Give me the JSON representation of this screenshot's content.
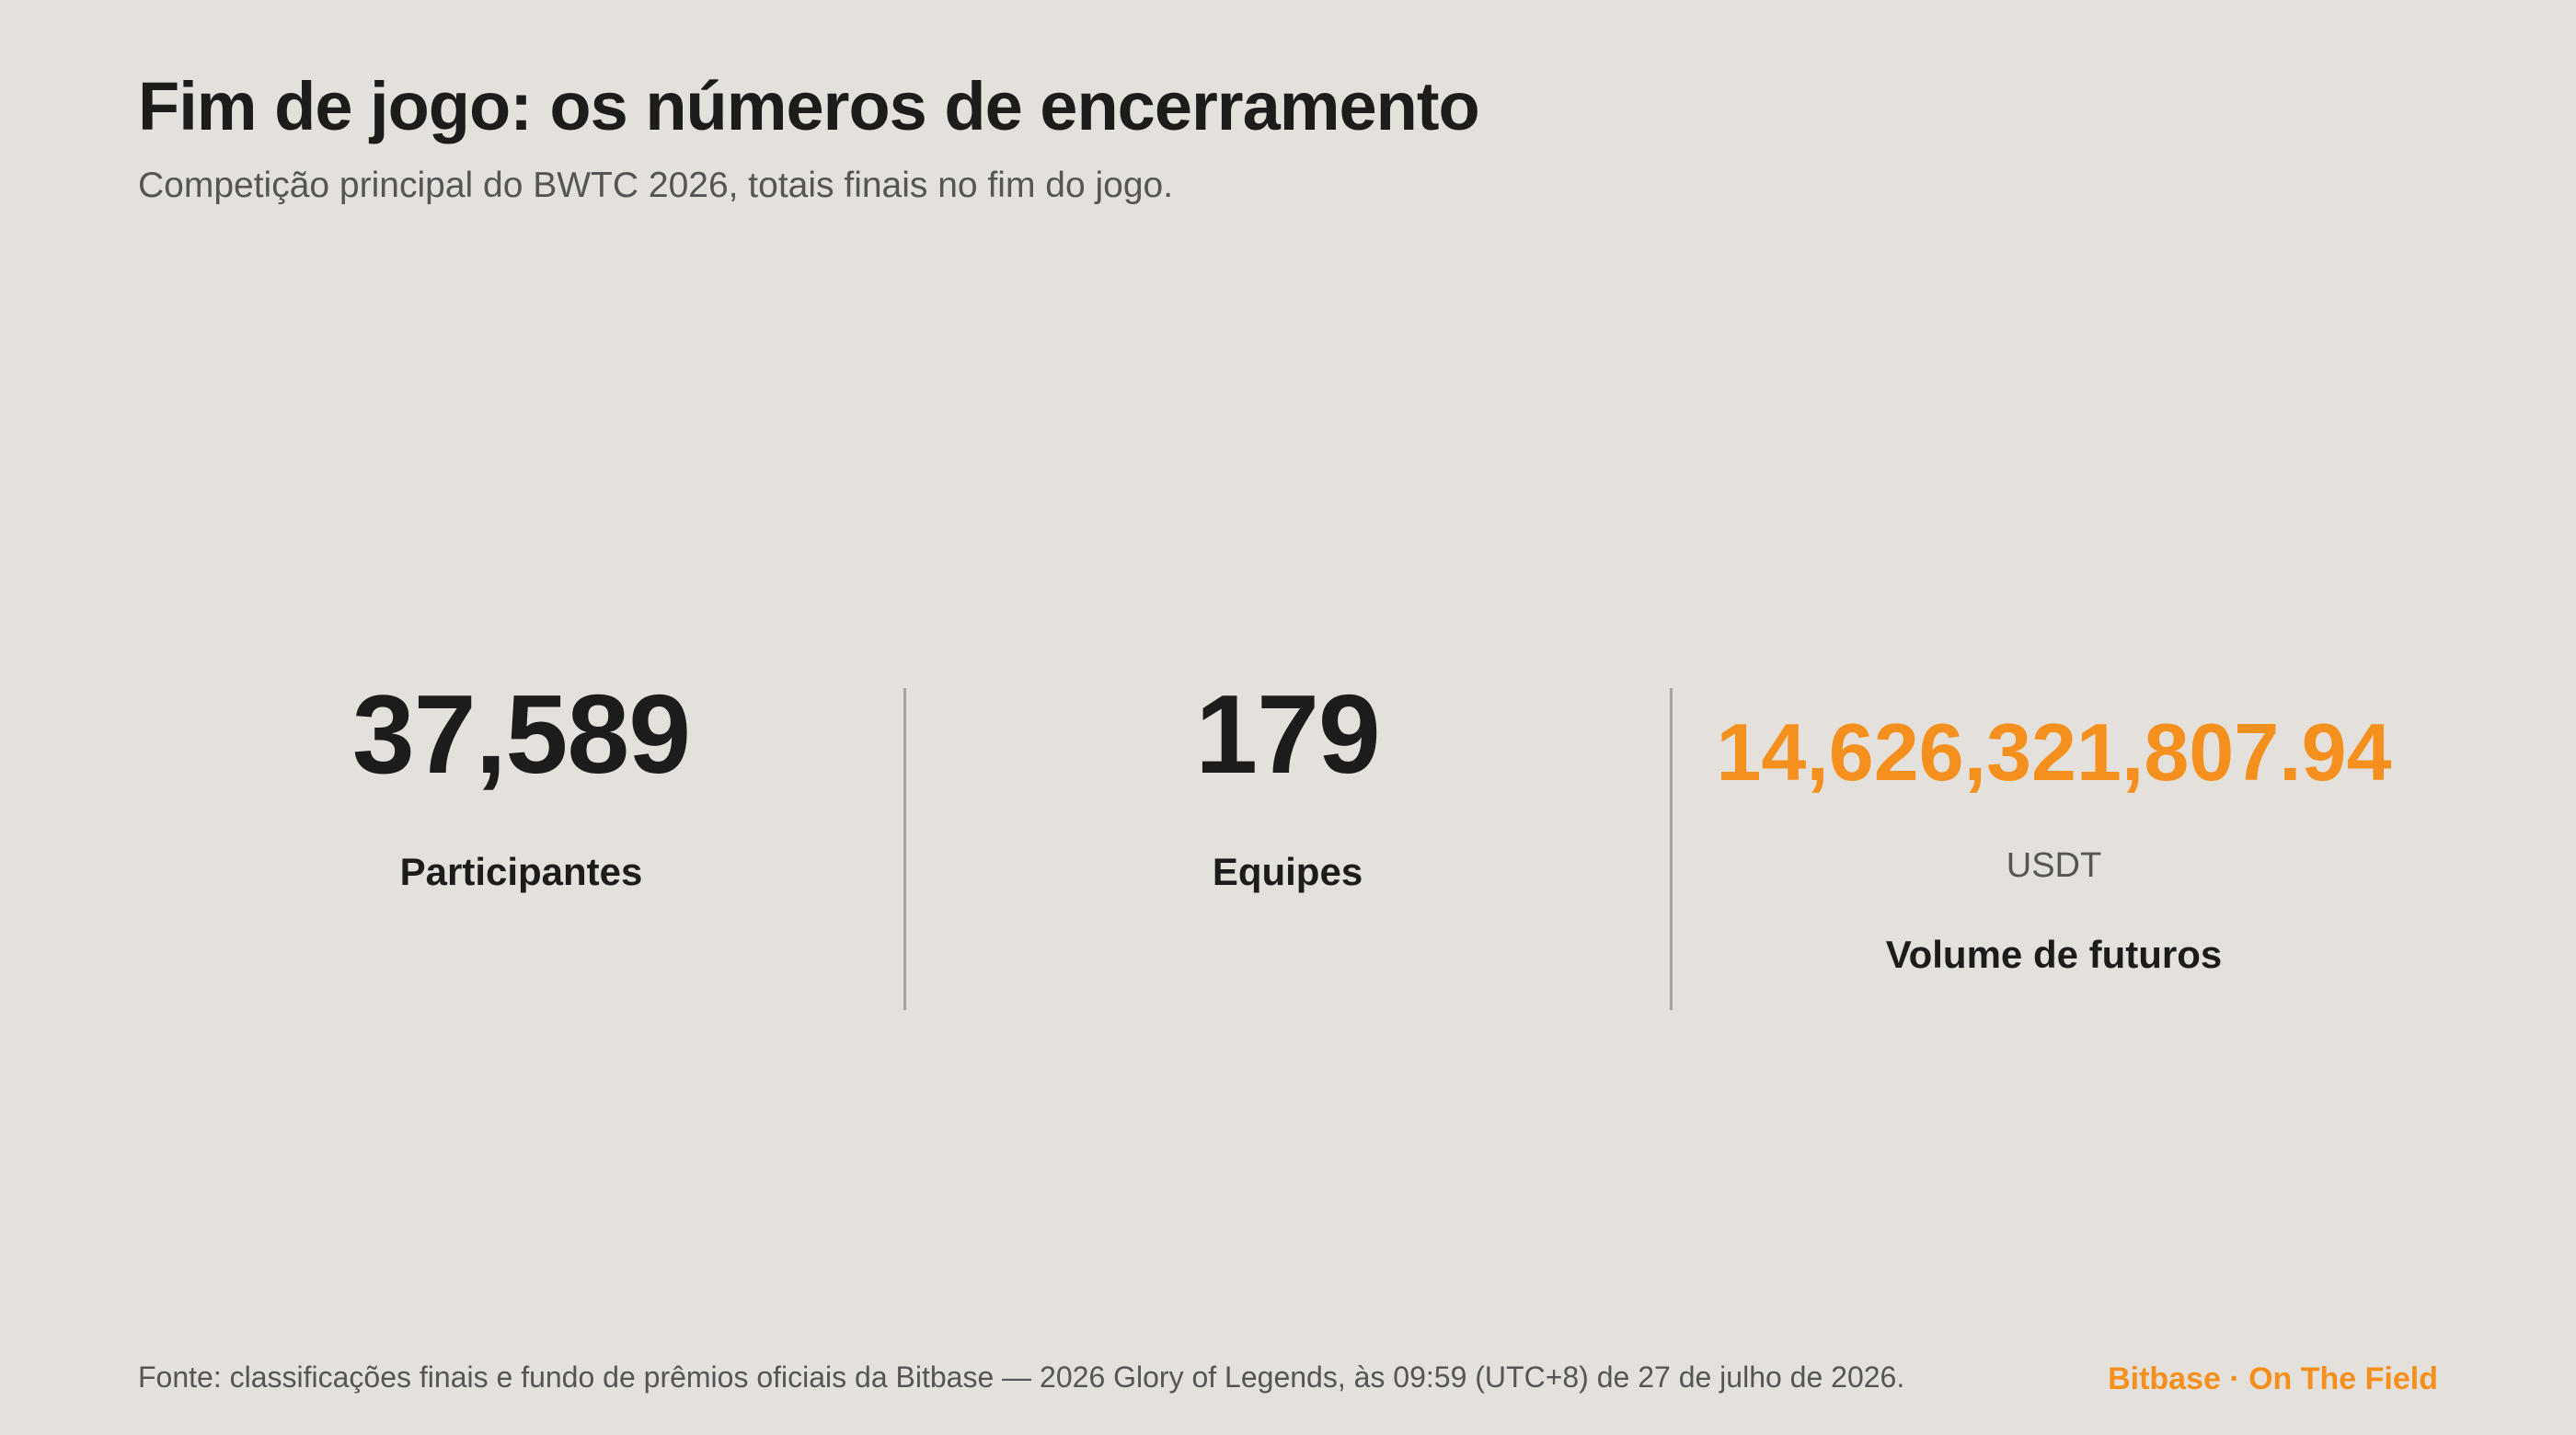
{
  "header": {
    "title": "Fim de jogo: os números de encerramento",
    "subtitle": "Competição principal do BWTC 2026, totais finais no fim do jogo."
  },
  "stats": [
    {
      "value": "37,589",
      "label": "Participantes"
    },
    {
      "value": "179",
      "label": "Equipes"
    },
    {
      "value": "14,626,321,807.94",
      "unit": "USDT",
      "label": "Volume de futuros"
    }
  ],
  "footer": {
    "source": "Fonte: classificações finais e fundo de prêmios oficiais da Bitbase — 2026 Glory of Legends, às 09:59 (UTC+8) de 27 de julho de 2026.",
    "brand": "Bitbase · On The Field"
  },
  "colors": {
    "background": "#e4e0db",
    "text": "#1c1c1c",
    "muted": "#555555",
    "accent": "#f5901e",
    "divider": "#a8a39e"
  }
}
